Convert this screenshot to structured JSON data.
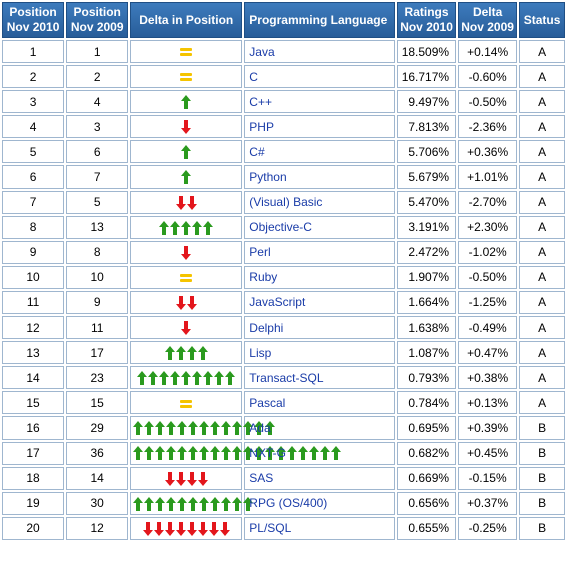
{
  "headers": {
    "pos2010": [
      "Position",
      "Nov 2010"
    ],
    "pos2009": [
      "Position",
      "Nov 2009"
    ],
    "delta_pos": "Delta in Position",
    "language": "Programming Language",
    "ratings": [
      "Ratings",
      "Nov 2010"
    ],
    "delta_rating": [
      "Delta",
      "Nov 2009"
    ],
    "status": "Status"
  },
  "colors": {
    "up": "#2a9a1e",
    "down": "#e3161c",
    "equal": "#f5c400",
    "header": "#2f6aa7",
    "link": "#1a3ca8"
  },
  "rows": [
    {
      "pos2010": "1",
      "pos2009": "1",
      "dir": "equal",
      "count": 1,
      "language": "Java",
      "rating": "18.509%",
      "delta": "+0.14%",
      "status": "A"
    },
    {
      "pos2010": "2",
      "pos2009": "2",
      "dir": "equal",
      "count": 1,
      "language": "C",
      "rating": "16.717%",
      "delta": "-0.60%",
      "status": "A"
    },
    {
      "pos2010": "3",
      "pos2009": "4",
      "dir": "up",
      "count": 1,
      "language": "C++",
      "rating": "9.497%",
      "delta": "-0.50%",
      "status": "A"
    },
    {
      "pos2010": "4",
      "pos2009": "3",
      "dir": "down",
      "count": 1,
      "language": "PHP",
      "rating": "7.813%",
      "delta": "-2.36%",
      "status": "A"
    },
    {
      "pos2010": "5",
      "pos2009": "6",
      "dir": "up",
      "count": 1,
      "language": "C#",
      "rating": "5.706%",
      "delta": "+0.36%",
      "status": "A"
    },
    {
      "pos2010": "6",
      "pos2009": "7",
      "dir": "up",
      "count": 1,
      "language": "Python",
      "rating": "5.679%",
      "delta": "+1.01%",
      "status": "A"
    },
    {
      "pos2010": "7",
      "pos2009": "5",
      "dir": "down",
      "count": 2,
      "language": "(Visual) Basic",
      "rating": "5.470%",
      "delta": "-2.70%",
      "status": "A"
    },
    {
      "pos2010": "8",
      "pos2009": "13",
      "dir": "up",
      "count": 5,
      "language": "Objective-C",
      "rating": "3.191%",
      "delta": "+2.30%",
      "status": "A"
    },
    {
      "pos2010": "9",
      "pos2009": "8",
      "dir": "down",
      "count": 1,
      "language": "Perl",
      "rating": "2.472%",
      "delta": "-1.02%",
      "status": "A"
    },
    {
      "pos2010": "10",
      "pos2009": "10",
      "dir": "equal",
      "count": 1,
      "language": "Ruby",
      "rating": "1.907%",
      "delta": "-0.50%",
      "status": "A"
    },
    {
      "pos2010": "11",
      "pos2009": "9",
      "dir": "down",
      "count": 2,
      "language": "JavaScript",
      "rating": "1.664%",
      "delta": "-1.25%",
      "status": "A"
    },
    {
      "pos2010": "12",
      "pos2009": "11",
      "dir": "down",
      "count": 1,
      "language": "Delphi",
      "rating": "1.638%",
      "delta": "-0.49%",
      "status": "A"
    },
    {
      "pos2010": "13",
      "pos2009": "17",
      "dir": "up",
      "count": 4,
      "language": "Lisp",
      "rating": "1.087%",
      "delta": "+0.47%",
      "status": "A"
    },
    {
      "pos2010": "14",
      "pos2009": "23",
      "dir": "up",
      "count": 9,
      "language": "Transact-SQL",
      "rating": "0.793%",
      "delta": "+0.38%",
      "status": "A"
    },
    {
      "pos2010": "15",
      "pos2009": "15",
      "dir": "equal",
      "count": 1,
      "language": "Pascal",
      "rating": "0.784%",
      "delta": "+0.13%",
      "status": "A"
    },
    {
      "pos2010": "16",
      "pos2009": "29",
      "dir": "up",
      "count": 13,
      "language": "Ada",
      "rating": "0.695%",
      "delta": "+0.39%",
      "status": "B"
    },
    {
      "pos2010": "17",
      "pos2009": "36",
      "dir": "up",
      "count": 19,
      "language": "NXT-G",
      "rating": "0.682%",
      "delta": "+0.45%",
      "status": "B"
    },
    {
      "pos2010": "18",
      "pos2009": "14",
      "dir": "down",
      "count": 4,
      "language": "SAS",
      "rating": "0.669%",
      "delta": "-0.15%",
      "status": "B"
    },
    {
      "pos2010": "19",
      "pos2009": "30",
      "dir": "up",
      "count": 11,
      "language": "RPG (OS/400)",
      "rating": "0.656%",
      "delta": "+0.37%",
      "status": "B"
    },
    {
      "pos2010": "20",
      "pos2009": "12",
      "dir": "down",
      "count": 8,
      "language": "PL/SQL",
      "rating": "0.655%",
      "delta": "-0.25%",
      "status": "B"
    }
  ]
}
